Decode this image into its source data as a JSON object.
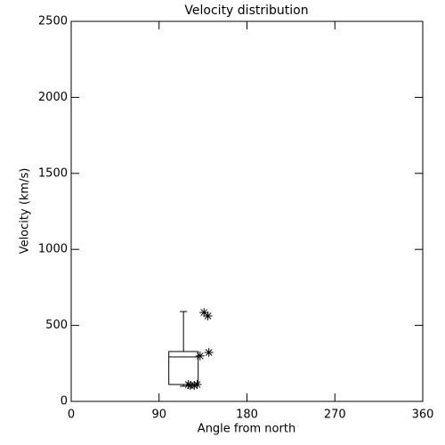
{
  "chart_data": {
    "type": "box",
    "title": "Velocity distribution",
    "xlabel": "Angle from north",
    "ylabel": "Velocity (km/s)",
    "xlim": [
      0,
      360
    ],
    "xticks": [
      0,
      90,
      180,
      270,
      360
    ],
    "ylim": [
      0,
      2500
    ],
    "yticks": [
      0,
      500,
      1000,
      1500,
      2000,
      2500
    ],
    "color": "#000000",
    "boxes": [
      {
        "x": 115,
        "whisker_low": 100,
        "q1": 111,
        "median": 293,
        "q3": 328,
        "whisker_high": 591
      }
    ],
    "points": {
      "x": [
        136,
        140,
        141,
        132,
        120,
        122,
        126,
        129
      ],
      "y": [
        585,
        562,
        322,
        299,
        111,
        105,
        105,
        111
      ]
    }
  }
}
